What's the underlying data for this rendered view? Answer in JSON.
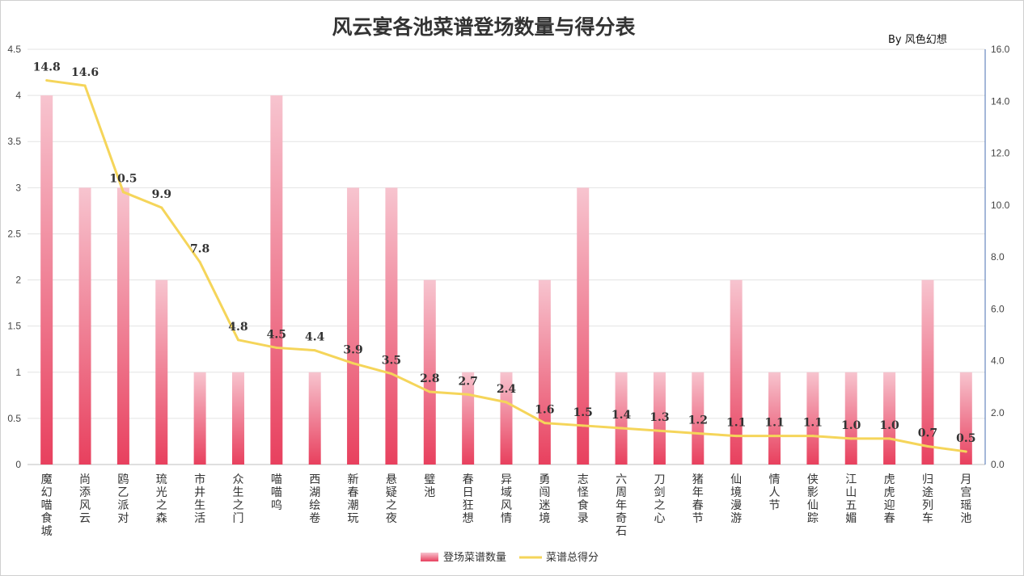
{
  "byline": "By  风色幻想",
  "chart_data": {
    "type": "bar+line",
    "title": "风云宴各池菜谱登场数量与得分表",
    "categories": [
      "魔幻喵食城",
      "尚添风云",
      "鸥乙派对",
      "琉光之森",
      "市井生活",
      "众生之门",
      "喵喵呜",
      "西湖绘卷",
      "新春潮玩",
      "悬疑之夜",
      "璧池",
      "春日狂想",
      "异域风情",
      "勇闯迷境",
      "志怪食录",
      "六周年奇石",
      "刀剑之心",
      "猪年春节",
      "仙境漫游",
      "情人节",
      "侠影仙踪",
      "江山五媚",
      "虎虎迎春",
      "归途列车",
      "月宫瑶池"
    ],
    "series": [
      {
        "name": "登场菜谱数量",
        "type": "bar",
        "axis": "left",
        "color": "#e8405e",
        "values": [
          4,
          3,
          3,
          2,
          1,
          1,
          4,
          1,
          3,
          3,
          2,
          1,
          1,
          2,
          3,
          1,
          1,
          1,
          2,
          1,
          1,
          1,
          1,
          2,
          1
        ]
      },
      {
        "name": "菜谱总得分",
        "type": "line",
        "axis": "right",
        "color": "#f5d55a",
        "values": [
          14.8,
          14.6,
          10.5,
          9.9,
          7.8,
          4.8,
          4.5,
          4.4,
          3.9,
          3.5,
          2.8,
          2.7,
          2.4,
          1.6,
          1.5,
          1.4,
          1.3,
          1.2,
          1.1,
          1.1,
          1.1,
          1.0,
          1.0,
          0.7,
          0.5
        ],
        "labels": [
          "14.8",
          "14.6",
          "10.5",
          "9.9",
          "7.8",
          "4.8",
          "4.5",
          "4.4",
          "3.9",
          "3.5",
          "2.8",
          "2.7",
          "2.4",
          "1.6",
          "1.5",
          "1.4",
          "1.3",
          "1.2",
          "1.1",
          "1.1",
          "1.1",
          "1.0",
          "1.0",
          "0.7",
          "0.5"
        ]
      }
    ],
    "y_left": {
      "min": 0,
      "max": 4.5,
      "ticks": [
        "0",
        "0.5",
        "1",
        "1.5",
        "2",
        "2.5",
        "3",
        "3.5",
        "4",
        "4.5"
      ]
    },
    "y_right": {
      "min": 0,
      "max": 16,
      "ticks": [
        "0.0",
        "2.0",
        "4.0",
        "6.0",
        "8.0",
        "10.0",
        "12.0",
        "14.0",
        "16.0"
      ]
    },
    "grid": true,
    "legend_position": "bottom"
  }
}
